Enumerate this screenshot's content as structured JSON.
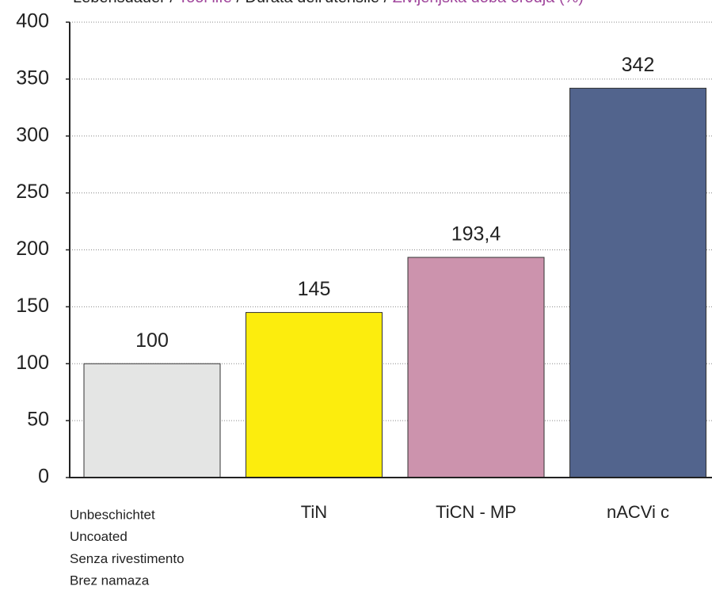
{
  "chart_data": {
    "type": "bar",
    "title_parts": [
      "Lebensdauer / ",
      "Tool life",
      " / Durata dell'utensile / ",
      "Življenjska doba orodja (%)"
    ],
    "title_part_colors": [
      "#222222",
      "#a0469c",
      "#222222",
      "#a0469c"
    ],
    "categories": [
      [
        "Unbeschichtet",
        "Uncoated",
        "Senza rivestimento",
        "Brez namaza"
      ],
      "TiN",
      "TiCN - MP",
      "nACVi c"
    ],
    "category_line_colors": [
      "#222222",
      "#a0469c",
      "#222222",
      "#a0469c"
    ],
    "values": [
      100,
      145,
      193.4,
      342
    ],
    "value_labels": [
      "100",
      "145",
      "193,4",
      "342"
    ],
    "colors": [
      "#e4e5e4",
      "#fced0d",
      "#cc93ad",
      "#52648d"
    ],
    "ylim": [
      0,
      400
    ],
    "yticks": [
      0,
      50,
      100,
      150,
      200,
      250,
      300,
      350,
      400
    ],
    "grid": true
  }
}
